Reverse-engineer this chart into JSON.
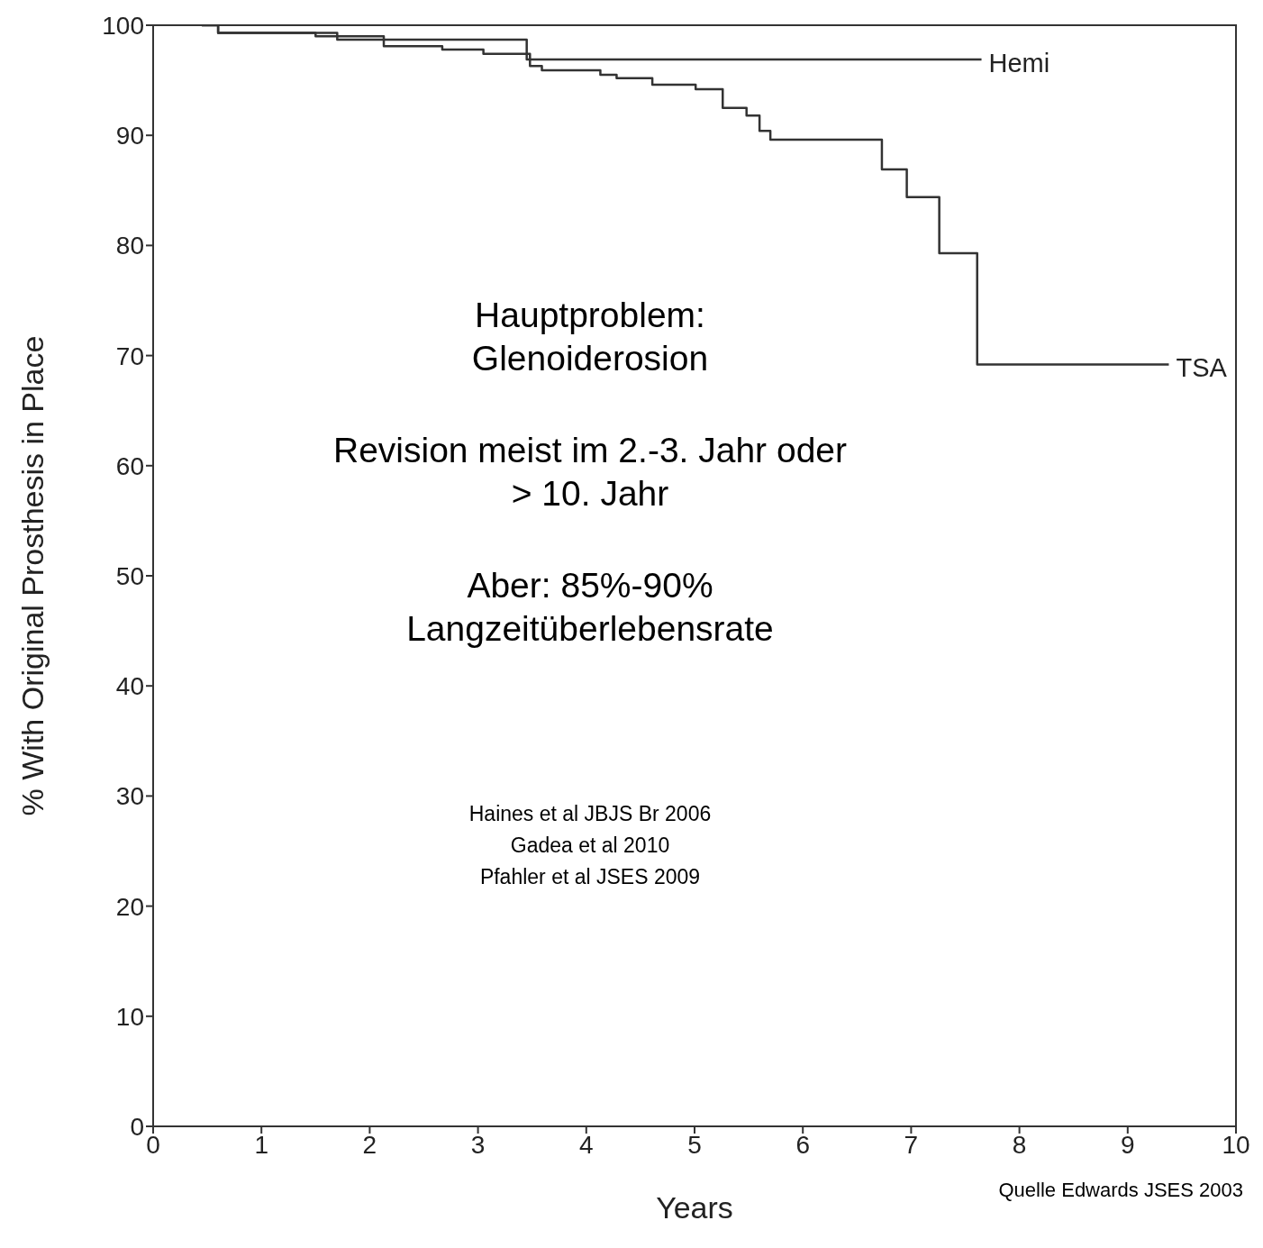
{
  "chart_data": {
    "type": "step",
    "xlabel": "Years",
    "ylabel": "% With Original Prosthesis in Place",
    "xlim": [
      0,
      10
    ],
    "xticks": [
      0,
      1,
      2,
      3,
      4,
      5,
      6,
      7,
      8,
      9,
      10
    ],
    "ylim": [
      0,
      100
    ],
    "yticks": [
      0,
      10,
      20,
      30,
      40,
      50,
      60,
      70,
      80,
      90,
      100
    ],
    "grid": false,
    "marker": "none",
    "line_style": "solid",
    "series": [
      {
        "name": "Hemi",
        "color": "#333333",
        "x": [
          0.45,
          0.6,
          1.7,
          3.45,
          7.65
        ],
        "values": [
          100,
          99.3,
          98.7,
          96.9,
          96.9
        ]
      },
      {
        "name": "TSA",
        "color": "#333333",
        "x": [
          0.45,
          0.6,
          1.5,
          2.13,
          2.67,
          3.05,
          3.48,
          3.59,
          4.13,
          4.28,
          4.61,
          5.01,
          5.26,
          5.48,
          5.6,
          5.7,
          6.73,
          6.96,
          7.26,
          7.61,
          9.38
        ],
        "values": [
          100,
          99.3,
          99.0,
          98.1,
          97.8,
          97.4,
          96.3,
          95.9,
          95.5,
          95.2,
          94.6,
          94.2,
          92.5,
          91.8,
          90.4,
          89.6,
          86.9,
          84.4,
          79.3,
          69.2,
          69.2
        ]
      }
    ],
    "annotations": [
      "Hauptproblem: Glenoiderosion",
      "Revision meist im 2.-3. Jahr oder > 10. Jahr",
      "Aber: 85%-90% Langzeitüberlebensrate",
      "Haines et al JBJS Br 2006",
      "Gadea et al 2010",
      "Pfahler et al JSES 2009",
      "Quelle Edwards JSES 2003"
    ]
  }
}
